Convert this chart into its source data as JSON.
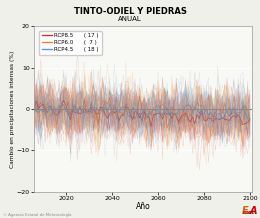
{
  "title": "TINTO-ODIEL Y PIEDRAS",
  "subtitle": "ANUAL",
  "xlabel": "Año",
  "ylabel": "Cambio en precipitaciones intensas (%)",
  "xlim": [
    2006,
    2101
  ],
  "ylim": [
    -20,
    20
  ],
  "yticks": [
    -20,
    -10,
    0,
    10,
    20
  ],
  "xticks": [
    2020,
    2040,
    2060,
    2080,
    2100
  ],
  "rcp85_color": "#c0392b",
  "rcp60_color": "#e8853d",
  "rcp45_color": "#5b9bd5",
  "rcp85_shade": "#e8a090",
  "rcp60_shade": "#f0c080",
  "rcp45_shade": "#b0c8e0",
  "legend_labels": [
    "RCP8.5",
    "RCP6.0",
    "RCP4.5"
  ],
  "legend_counts": [
    "( 17 )",
    "(  7 )",
    "( 18 )"
  ],
  "bg_color": "#f0f0eb",
  "plot_bg": "#f8f8f4",
  "seed": 42
}
